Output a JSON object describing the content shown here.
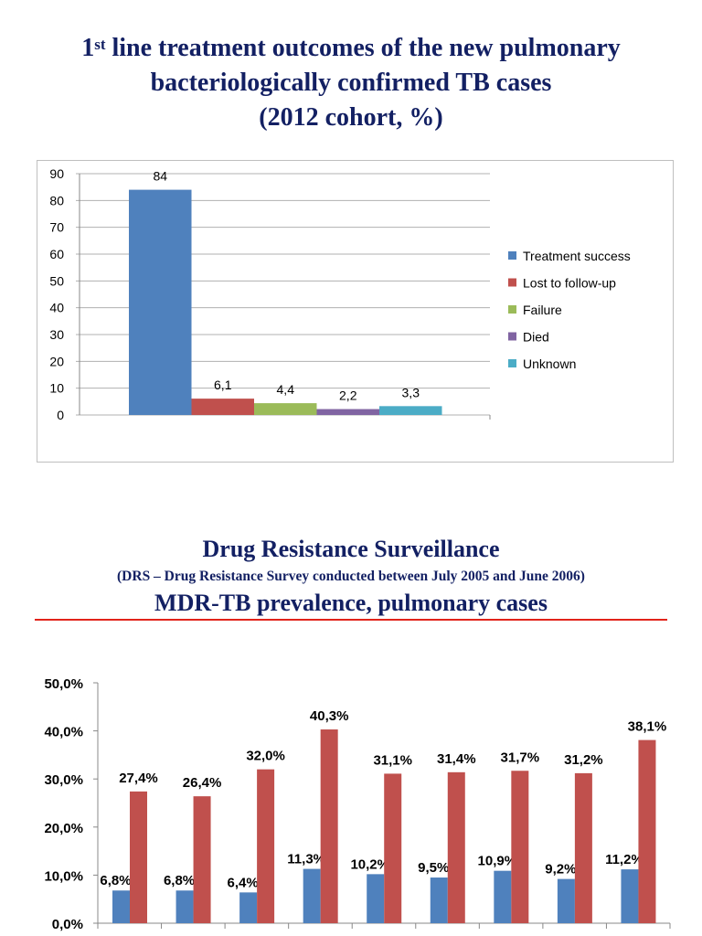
{
  "header": {
    "title_prefix": "1",
    "title_sup": "st",
    "title_line1_rest": " line treatment outcomes of the new pulmonary",
    "title_line2": "bacteriologically confirmed TB cases",
    "title_line3": "(2012 cohort, %)"
  },
  "section2": {
    "title": "Drug Resistance Surveillance",
    "subtitle": "(DRS – Drug Resistance Survey conducted between July 2005 and June 2006)",
    "heading": "MDR-TB prevalence, pulmonary cases",
    "rule_color": "#e2231a"
  },
  "chart_data": [
    {
      "type": "bar",
      "categories": [
        "Treatment success",
        "Lost to follow-up",
        "Failure",
        "Died",
        "Unknown"
      ],
      "values": [
        84,
        6.1,
        4.4,
        2.2,
        3.3
      ],
      "data_labels": [
        "84",
        "6,1",
        "4,4",
        "2,2",
        "3,3"
      ],
      "colors": [
        "#4f81bd",
        "#c0504d",
        "#9bbb59",
        "#8064a2",
        "#4bacc6"
      ],
      "ylim": [
        0,
        90
      ],
      "yticks": [
        "0",
        "10",
        "20",
        "30",
        "40",
        "50",
        "60",
        "70",
        "80",
        "90"
      ],
      "grid": true,
      "legend": "right"
    },
    {
      "type": "bar",
      "ylim": [
        0,
        50
      ],
      "yticks": [
        "0,0%",
        "10,0%",
        "20,0%",
        "30,0%",
        "40,0%",
        "50,0%"
      ],
      "grid": false,
      "series": [
        {
          "values": [
            6.8,
            6.8,
            6.4,
            11.3,
            10.2,
            9.5,
            10.9,
            9.2,
            11.2
          ],
          "labels": [
            "6,8%",
            "6,8%",
            "6,4%",
            "11,3%",
            "10,2%",
            "9,5%",
            "10,9%",
            "9,2%",
            "11,2%"
          ],
          "color": "#4f81bd"
        },
        {
          "values": [
            27.4,
            26.4,
            32.0,
            40.3,
            31.1,
            31.4,
            31.7,
            31.2,
            38.1
          ],
          "labels": [
            "27,4%",
            "26,4%",
            "32,0%",
            "40,3%",
            "31,1%",
            "31,4%",
            "31,7%",
            "31,2%",
            "38,1%"
          ],
          "color": "#c0504d"
        }
      ]
    }
  ]
}
